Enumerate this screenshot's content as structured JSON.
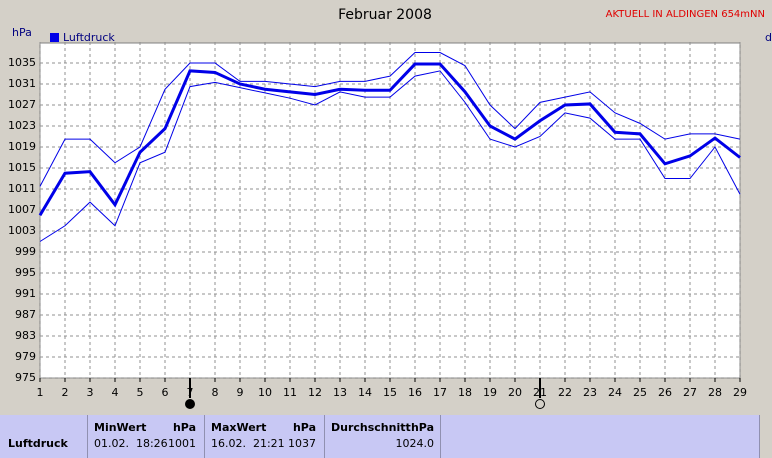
{
  "chart_data": {
    "type": "line",
    "title": "Februar 2008",
    "subtitle": "AKTUELL IN ALDINGEN 654mNN",
    "y_label": "hPa",
    "x_label": "d",
    "x": [
      1,
      2,
      3,
      4,
      5,
      6,
      7,
      8,
      9,
      10,
      11,
      12,
      13,
      14,
      15,
      16,
      17,
      18,
      19,
      20,
      21,
      22,
      23,
      24,
      25,
      26,
      27,
      28,
      29
    ],
    "xlim": [
      1,
      29
    ],
    "xticks": [
      1,
      2,
      3,
      4,
      5,
      6,
      7,
      8,
      9,
      10,
      11,
      12,
      13,
      14,
      15,
      16,
      17,
      18,
      19,
      20,
      21,
      22,
      23,
      24,
      25,
      26,
      27,
      28,
      29
    ],
    "ylim": [
      975,
      1039
    ],
    "yticks": [
      975,
      979,
      983,
      987,
      991,
      995,
      999,
      1003,
      1007,
      1011,
      1015,
      1019,
      1023,
      1027,
      1031,
      1035
    ],
    "grid": true,
    "markers": [
      {
        "x": 7,
        "kind": "filled"
      },
      {
        "x": 21,
        "kind": "open"
      }
    ],
    "series": [
      {
        "name": "Luftdruck",
        "color": "#0000e8",
        "width": 3,
        "values": [
          1006,
          1014,
          1014.3,
          1008,
          1018,
          1022.5,
          1033.5,
          1033.2,
          1031,
          1030,
          1029.5,
          1029,
          1030,
          1029.8,
          1029.8,
          1034.8,
          1034.8,
          1029.5,
          1023,
          1020.5,
          1024,
          1027,
          1027.2,
          1021.8,
          1021.5,
          1015.8,
          1017.3,
          1020.7,
          1017
        ]
      },
      {
        "color": "#0000e8",
        "width": 1,
        "values": [
          1011.5,
          1020.5,
          1020.5,
          1016,
          1019,
          1030,
          1035,
          1035,
          1031.5,
          1031.5,
          1031,
          1030.5,
          1031.5,
          1031.5,
          1032.5,
          1037,
          1037,
          1034.5,
          1027,
          1022.5,
          1027.5,
          1028.5,
          1029.5,
          1025.5,
          1023.5,
          1020.5,
          1021.5,
          1021.5,
          1020.5
        ]
      },
      {
        "color": "#0000e8",
        "width": 1,
        "values": [
          1001,
          1004,
          1008.5,
          1004,
          1016,
          1018,
          1030.5,
          1031.3,
          1030.3,
          1029.3,
          1028.3,
          1027,
          1029.5,
          1028.5,
          1028.5,
          1032.5,
          1033.5,
          1027.5,
          1020.5,
          1019,
          1021,
          1025.5,
          1024.5,
          1020.5,
          1020.5,
          1013,
          1013,
          1019,
          1010
        ]
      }
    ]
  },
  "table": {
    "columns": [
      {
        "name": "MinWert",
        "unit": "hPa"
      },
      {
        "name": "MaxWert",
        "unit": "hPa"
      },
      {
        "name": "Durchschnitt",
        "unit": "hPa"
      }
    ],
    "rows": [
      {
        "label": "Luftdruck",
        "cells": [
          {
            "time": "01.02.  18:26",
            "value": "1001"
          },
          {
            "time": "16.02.  21:21",
            "value": "1037"
          },
          {
            "value": "1024.0"
          }
        ]
      }
    ]
  }
}
